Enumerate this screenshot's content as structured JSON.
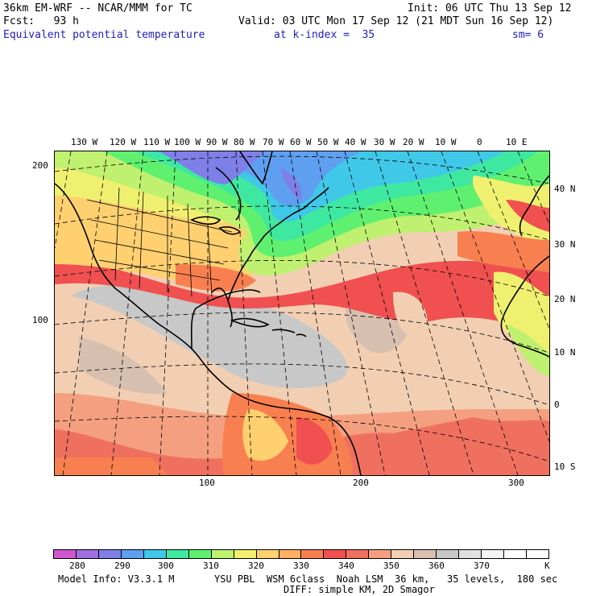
{
  "header": {
    "line1_left": "36km EM-WRF -- NCAR/MMM for TC",
    "line1_right": "Init: 06 UTC Thu 13 Sep 12",
    "line2_left": "Fcst:   93 h",
    "line2_right": "Valid: 03 UTC Mon 17 Sep 12 (21 MDT Sun 16 Sep 12)",
    "line3_field": "Equivalent potential temperature",
    "line3_index": "at k-index =  35",
    "line3_sm": "sm= 6"
  },
  "map": {
    "lon_labels": [
      "130 W",
      "120 W",
      "110 W",
      "100 W",
      "90 W",
      "80 W",
      "70 W",
      "60 W",
      "50 W",
      "40 W",
      "30 W",
      "20 W",
      "10 W",
      "0",
      "10 E"
    ],
    "lat_labels": [
      "40 N",
      "30 N",
      "20 N",
      "10 N",
      "0",
      "10 S"
    ],
    "left_axis_ticks": [
      "200",
      "100"
    ],
    "bottom_axis_ticks": [
      "100",
      "200",
      "300"
    ]
  },
  "legend": {
    "colors": [
      "#d057d0",
      "#a070e0",
      "#7f7fe8",
      "#5f9ff0",
      "#40c8e8",
      "#3fe8a0",
      "#60f070",
      "#c0f070",
      "#f0f070",
      "#ffd070",
      "#ffb060",
      "#f88050",
      "#f05050",
      "#f07060",
      "#f4a080",
      "#f2cfb3",
      "#d8c0b0",
      "#c8c8c8",
      "#e0e0e0",
      "#f4f4f4",
      "#ffffff",
      "#ffffff"
    ],
    "labels": [
      "280",
      "290",
      "300",
      "310",
      "320",
      "330",
      "340",
      "350",
      "360",
      "370"
    ],
    "unit": "K"
  },
  "footer": {
    "model_info": "Model Info: V3.3.1 M",
    "physics_line1": "YSU PBL  WSM 6class  Noah LSM  36 km,   35 levels,  180 sec",
    "physics_line2": "DIFF: simple KM, 2D Smagor"
  }
}
